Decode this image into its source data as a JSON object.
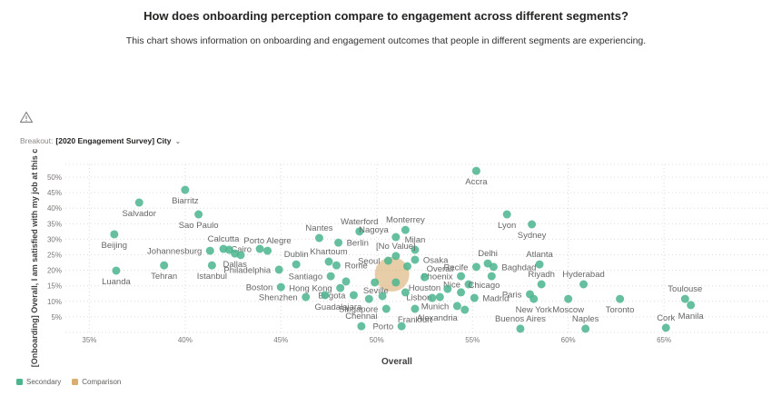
{
  "header": {
    "title": "How does onboarding perception compare to engagement across different segments?",
    "subtitle": "This chart shows information on onboarding and engagement outcomes that people in different segments are experiencing."
  },
  "controls": {
    "warning_icon": "warning-triangle",
    "breakout_label": "Breakout:",
    "breakout_value": "[2020 Engagement Survey] City",
    "dropdown_icon": "chevron-down"
  },
  "legend": [
    {
      "label": "Secondary",
      "color": "#4BB58E"
    },
    {
      "label": "Comparison",
      "color": "#D9AE6E"
    }
  ],
  "chart_data": {
    "type": "scatter",
    "xlabel": "Overall",
    "ylabel": "[Onboarding] Overall, I am satisfied with my job at this c",
    "xlim": [
      32.8,
      70.4
    ],
    "ylim": [
      0,
      54.1
    ],
    "x_tick_values": [
      35,
      40,
      45,
      50,
      55,
      60,
      65
    ],
    "x_tick_labels": [
      "35%",
      "40%",
      "45%",
      "50%",
      "55%",
      "60%",
      "65%"
    ],
    "y_tick_values": [
      5,
      10,
      15,
      20,
      25,
      30,
      35,
      40,
      45,
      50
    ],
    "y_tick_labels": [
      "5%",
      "10%",
      "15%",
      "20%",
      "25%",
      "30%",
      "35%",
      "40%",
      "45%",
      "50%"
    ],
    "grid": true,
    "legend_position": "bottom-left",
    "series": [
      {
        "name": "Secondary",
        "color": "#4BB58E",
        "opacity": 0.85,
        "marker_radius": 4.5,
        "points": [
          {
            "label": "Accra",
            "x": 55.2,
            "y": 52.0,
            "lp": "s"
          },
          {
            "label": "Biarritz",
            "x": 40.0,
            "y": 45.9,
            "lp": "s"
          },
          {
            "label": "Salvador",
            "x": 37.6,
            "y": 41.8,
            "lp": "s"
          },
          {
            "label": "Sao Paulo",
            "x": 40.7,
            "y": 38.0,
            "lp": "s"
          },
          {
            "label": "Lyon",
            "x": 56.8,
            "y": 38.0,
            "lp": "s"
          },
          {
            "label": "Sydney",
            "x": 58.1,
            "y": 34.8,
            "lp": "s"
          },
          {
            "label": "Beijing",
            "x": 36.3,
            "y": 31.6,
            "lp": "s"
          },
          {
            "label": "Nantes",
            "x": 47.0,
            "y": 30.4,
            "lp": "n"
          },
          {
            "label": "Waterford",
            "x": 49.1,
            "y": 32.5,
            "lp": "n"
          },
          {
            "label": "Monterrey",
            "x": 51.5,
            "y": 33.0,
            "lp": "n"
          },
          {
            "label": "Nagoya",
            "x": 51.0,
            "y": 30.7,
            "lp": "nw"
          },
          {
            "label": "Milan",
            "x": 52.0,
            "y": 26.6,
            "lp": "n"
          },
          {
            "label": "Berlin",
            "x": 48.0,
            "y": 28.9,
            "lp": "e"
          },
          {
            "label": "[No Value]",
            "x": 51.0,
            "y": 24.6,
            "lp": "n"
          },
          {
            "label": "Calcutta",
            "x": 42.0,
            "y": 26.9,
            "lp": "n"
          },
          {
            "label": "Porto Alegre",
            "x": 44.3,
            "y": 26.3,
            "lp": "n"
          },
          {
            "label": "Cairo",
            "x": 43.9,
            "y": 26.9,
            "lp": "w"
          },
          {
            "label": "Johannesburg",
            "x": 41.3,
            "y": 26.3,
            "lp": "w"
          },
          {
            "label": "Dallas",
            "x": 42.6,
            "y": 25.4,
            "lp": "s"
          },
          {
            "label": "Philadelphia",
            "x": 44.9,
            "y": 20.2,
            "lp": "w"
          },
          {
            "label": "Istanbul",
            "x": 41.4,
            "y": 21.6,
            "lp": "s"
          },
          {
            "label": "Tehran",
            "x": 38.9,
            "y": 21.6,
            "lp": "s"
          },
          {
            "label": "Luanda",
            "x": 36.4,
            "y": 19.9,
            "lp": "s"
          },
          {
            "label": "Dublin",
            "x": 45.8,
            "y": 21.9,
            "lp": "n"
          },
          {
            "label": "Khartoum",
            "x": 47.5,
            "y": 22.8,
            "lp": "n"
          },
          {
            "label": "Rome",
            "x": 47.9,
            "y": 21.6,
            "lp": "e"
          },
          {
            "label": "Seoul",
            "x": 50.6,
            "y": 23.1,
            "lp": "w"
          },
          {
            "label": "Osaka",
            "x": 52.0,
            "y": 23.4,
            "lp": "e"
          },
          {
            "label": "Recife",
            "x": 55.2,
            "y": 21.1,
            "lp": "w"
          },
          {
            "label": "Delhi",
            "x": 55.8,
            "y": 22.2,
            "lp": "n"
          },
          {
            "label": "Baghdad",
            "x": 56.1,
            "y": 21.1,
            "lp": "e"
          },
          {
            "label": "Atlanta",
            "x": 58.5,
            "y": 21.9,
            "lp": "n"
          },
          {
            "label": "Riyadh",
            "x": 58.6,
            "y": 15.5,
            "lp": "n"
          },
          {
            "label": "Hyderabad",
            "x": 60.8,
            "y": 15.5,
            "lp": "n"
          },
          {
            "label": "Santiago",
            "x": 47.6,
            "y": 18.1,
            "lp": "w"
          },
          {
            "label": "Phoenix",
            "x": 54.4,
            "y": 18.1,
            "lp": "w"
          },
          {
            "label": "Houston",
            "x": 52.5,
            "y": 17.8,
            "lp": "s"
          },
          {
            "label": "Seville",
            "x": 51.0,
            "y": 16.1,
            "lp": "sw"
          },
          {
            "label": "Nice",
            "x": 54.8,
            "y": 15.5,
            "lp": "w"
          },
          {
            "label": "Boston",
            "x": 45.0,
            "y": 14.6,
            "lp": "w"
          },
          {
            "label": "Hong Kong",
            "x": 48.1,
            "y": 14.3,
            "lp": "w"
          },
          {
            "label": "Chicago",
            "x": 54.4,
            "y": 12.9,
            "lp": "ne"
          },
          {
            "label": "Paris",
            "x": 58.0,
            "y": 12.3,
            "lp": "w"
          },
          {
            "label": "Shenzhen",
            "x": 46.3,
            "y": 11.4,
            "lp": "w"
          },
          {
            "label": "Lisbon",
            "x": 53.3,
            "y": 11.4,
            "lp": "w"
          },
          {
            "label": "Madrid",
            "x": 55.1,
            "y": 11.1,
            "lp": "e"
          },
          {
            "label": "Bogota",
            "x": 48.8,
            "y": 12.0,
            "lp": "w"
          },
          {
            "label": "Toulouse",
            "x": 66.1,
            "y": 10.8,
            "lp": "n"
          },
          {
            "label": "Moscow",
            "x": 60.0,
            "y": 10.8,
            "lp": "s"
          },
          {
            "label": "Toronto",
            "x": 62.7,
            "y": 10.8,
            "lp": "s"
          },
          {
            "label": "New York",
            "x": 58.2,
            "y": 10.8,
            "lp": "s"
          },
          {
            "label": "Guadalajara",
            "x": 49.6,
            "y": 10.8,
            "lp": "sw"
          },
          {
            "label": "Manila",
            "x": 66.4,
            "y": 8.8,
            "lp": "s"
          },
          {
            "label": "Munich",
            "x": 54.2,
            "y": 8.5,
            "lp": "w"
          },
          {
            "label": "Singapore",
            "x": 50.5,
            "y": 7.6,
            "lp": "w"
          },
          {
            "label": "Frankfurt",
            "x": 52.0,
            "y": 7.6,
            "lp": "s"
          },
          {
            "label": "Alexandria",
            "x": 54.6,
            "y": 7.3,
            "lp": "sw"
          },
          {
            "label": "Chennai",
            "x": 49.2,
            "y": 2.0,
            "lp": "n"
          },
          {
            "label": "Porto",
            "x": 51.3,
            "y": 2.0,
            "lp": "w"
          },
          {
            "label": "Buenos Aires",
            "x": 57.5,
            "y": 1.2,
            "lp": "n"
          },
          {
            "label": "Naples",
            "x": 60.9,
            "y": 1.2,
            "lp": "n"
          },
          {
            "label": "Cork",
            "x": 65.1,
            "y": 1.5,
            "lp": "n"
          },
          {
            "label": "",
            "x": 49.9,
            "y": 16.1
          },
          {
            "label": "",
            "x": 50.3,
            "y": 11.7
          },
          {
            "label": "",
            "x": 47.3,
            "y": 12.0
          },
          {
            "label": "",
            "x": 53.7,
            "y": 14.0
          },
          {
            "label": "",
            "x": 51.5,
            "y": 12.9
          },
          {
            "label": "",
            "x": 56.0,
            "y": 18.1
          },
          {
            "label": "",
            "x": 42.3,
            "y": 26.6
          },
          {
            "label": "",
            "x": 42.9,
            "y": 24.9
          },
          {
            "label": "",
            "x": 48.4,
            "y": 16.4
          },
          {
            "label": "",
            "x": 51.6,
            "y": 21.3
          },
          {
            "label": "",
            "x": 52.9,
            "y": 11.1
          }
        ]
      },
      {
        "name": "Comparison",
        "color": "#D9AE6E",
        "opacity": 0.6,
        "marker_radius": 19,
        "points": [
          {
            "label": "Overall",
            "x": 50.8,
            "y": 18.7,
            "ldx": 38,
            "ldy": -3
          }
        ]
      }
    ]
  }
}
